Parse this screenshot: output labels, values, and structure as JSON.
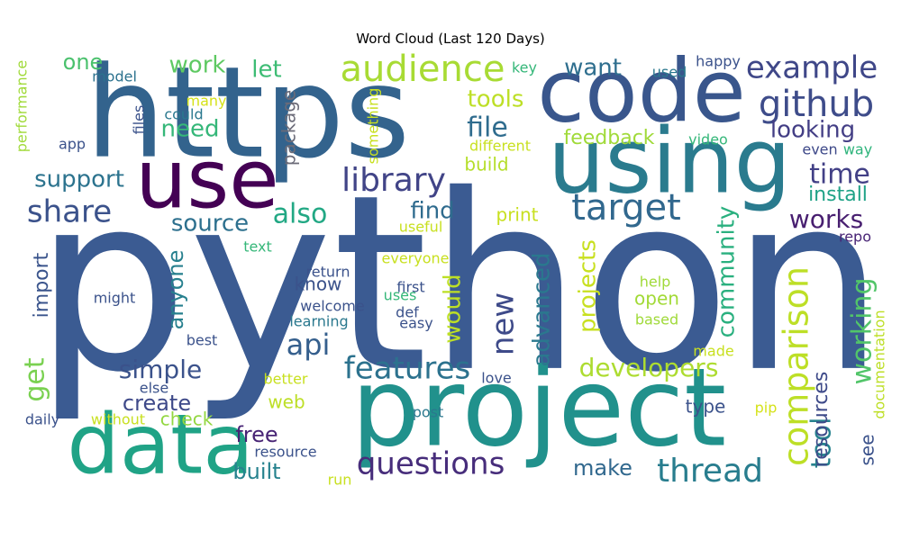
{
  "chart_data": {
    "type": "word-cloud",
    "title": "Word Cloud (Last 120 Days)",
    "words": [
      {
        "text": "python",
        "weight": 100,
        "color": "#3b5b92"
      },
      {
        "text": "https",
        "weight": 58,
        "color": "#33638d"
      },
      {
        "text": "project",
        "weight": 46,
        "color": "#21918c"
      },
      {
        "text": "using",
        "weight": 41,
        "color": "#2a7b8e"
      },
      {
        "text": "code",
        "weight": 39,
        "color": "#39568c"
      },
      {
        "text": "data",
        "weight": 38,
        "color": "#20a386"
      },
      {
        "text": "use",
        "weight": 37,
        "color": "#440154"
      },
      {
        "text": "github",
        "weight": 18,
        "color": "#3e4c8a"
      },
      {
        "text": "audience",
        "weight": 17,
        "color": "#a8db34"
      },
      {
        "text": "target",
        "weight": 16,
        "color": "#31688e"
      },
      {
        "text": "comparison",
        "weight": 16,
        "color": "#bddf26"
      },
      {
        "text": "example",
        "weight": 15,
        "color": "#3f4788"
      },
      {
        "text": "thread",
        "weight": 15,
        "color": "#287d8e"
      },
      {
        "text": "library",
        "weight": 14,
        "color": "#414487"
      },
      {
        "text": "share",
        "weight": 14,
        "color": "#3b528b"
      },
      {
        "text": "features",
        "weight": 14,
        "color": "#2c728e"
      },
      {
        "text": "questions",
        "weight": 14,
        "color": "#472d7b"
      },
      {
        "text": "new",
        "weight": 14,
        "color": "#3e4a89"
      },
      {
        "text": "api",
        "weight": 13,
        "color": "#355f8d"
      },
      {
        "text": "file",
        "weight": 13,
        "color": "#2f6c8e"
      },
      {
        "text": "also",
        "weight": 12,
        "color": "#22a884"
      },
      {
        "text": "time",
        "weight": 12,
        "color": "#424086"
      },
      {
        "text": "tool",
        "weight": 12,
        "color": "#26828e"
      },
      {
        "text": "working",
        "weight": 12,
        "color": "#52c569"
      },
      {
        "text": "get",
        "weight": 12,
        "color": "#7ad151"
      },
      {
        "text": "developers",
        "weight": 12,
        "color": "#addc30"
      },
      {
        "text": "simple",
        "weight": 12,
        "color": "#3b528b"
      },
      {
        "text": "works",
        "weight": 11,
        "color": "#481f70"
      },
      {
        "text": "community",
        "weight": 11,
        "color": "#2ab07f"
      },
      {
        "text": "want",
        "weight": 11,
        "color": "#2e6e8e"
      },
      {
        "text": "support",
        "weight": 11,
        "color": "#2c738e"
      },
      {
        "text": "source",
        "weight": 11,
        "color": "#2d708e"
      },
      {
        "text": "need",
        "weight": 11,
        "color": "#35b779"
      },
      {
        "text": "looking",
        "weight": 11,
        "color": "#433e85"
      },
      {
        "text": "tools",
        "weight": 11,
        "color": "#bddf26"
      },
      {
        "text": "advanced",
        "weight": 11,
        "color": "#2a788e"
      },
      {
        "text": "projects",
        "weight": 11,
        "color": "#c8e020"
      },
      {
        "text": "find",
        "weight": 11,
        "color": "#2f6b8e"
      },
      {
        "text": "work",
        "weight": 11,
        "color": "#5ec962"
      },
      {
        "text": "would",
        "weight": 11,
        "color": "#bddf26"
      },
      {
        "text": "let",
        "weight": 11,
        "color": "#3dbc74"
      },
      {
        "text": "one",
        "weight": 10,
        "color": "#4ac16d"
      },
      {
        "text": "make",
        "weight": 10,
        "color": "#31688e"
      },
      {
        "text": "create",
        "weight": 10,
        "color": "#3e4989"
      },
      {
        "text": "free",
        "weight": 10,
        "color": "#482475"
      },
      {
        "text": "built",
        "weight": 10,
        "color": "#26828e"
      },
      {
        "text": "anyone",
        "weight": 10,
        "color": "#27808e"
      },
      {
        "text": "feedback",
        "weight": 10,
        "color": "#a0da39"
      },
      {
        "text": "import",
        "weight": 10,
        "color": "#3a548c"
      },
      {
        "text": "resources",
        "weight": 10,
        "color": "#3e4a89"
      },
      {
        "text": "install",
        "weight": 10,
        "color": "#1fa287"
      },
      {
        "text": "build",
        "weight": 9,
        "color": "#b5de2b"
      },
      {
        "text": "open",
        "weight": 9,
        "color": "#a2da37"
      },
      {
        "text": "know",
        "weight": 9,
        "color": "#3b528b"
      },
      {
        "text": "check",
        "weight": 9,
        "color": "#93d741"
      },
      {
        "text": "package",
        "weight": 9,
        "color": "#6b6b78"
      },
      {
        "text": "print",
        "weight": 8,
        "color": "#c8e020"
      },
      {
        "text": "web",
        "weight": 8,
        "color": "#bddf26"
      },
      {
        "text": "see",
        "weight": 8,
        "color": "#3b528b"
      },
      {
        "text": "type",
        "weight": 8,
        "color": "#3b528b"
      },
      {
        "text": "model",
        "weight": 6,
        "color": "#2c728e"
      },
      {
        "text": "key",
        "weight": 6,
        "color": "#35b779"
      },
      {
        "text": "used",
        "weight": 6,
        "color": "#2a788e"
      },
      {
        "text": "happy",
        "weight": 6,
        "color": "#3b528b"
      },
      {
        "text": "could",
        "weight": 6,
        "color": "#2a788e"
      },
      {
        "text": "many",
        "weight": 6,
        "color": "#d5e21a"
      },
      {
        "text": "files",
        "weight": 6,
        "color": "#3b528b"
      },
      {
        "text": "app",
        "weight": 6,
        "color": "#3b528b"
      },
      {
        "text": "performance",
        "weight": 6,
        "color": "#a0da39"
      },
      {
        "text": "something",
        "weight": 6,
        "color": "#c8e020"
      },
      {
        "text": "different",
        "weight": 6,
        "color": "#c8e020"
      },
      {
        "text": "video",
        "weight": 6,
        "color": "#35b779"
      },
      {
        "text": "even",
        "weight": 6,
        "color": "#3e4989"
      },
      {
        "text": "way",
        "weight": 6,
        "color": "#2fb47c"
      },
      {
        "text": "useful",
        "weight": 6,
        "color": "#c8e020"
      },
      {
        "text": "text",
        "weight": 6,
        "color": "#35b779"
      },
      {
        "text": "repo",
        "weight": 6,
        "color": "#482475"
      },
      {
        "text": "everyone",
        "weight": 6,
        "color": "#c8e020"
      },
      {
        "text": "return",
        "weight": 6,
        "color": "#3b528b"
      },
      {
        "text": "first",
        "weight": 6,
        "color": "#3b528b"
      },
      {
        "text": "might",
        "weight": 6,
        "color": "#3b528b"
      },
      {
        "text": "uses",
        "weight": 6,
        "color": "#35b779"
      },
      {
        "text": "welcome",
        "weight": 6,
        "color": "#3b528b"
      },
      {
        "text": "def",
        "weight": 6,
        "color": "#3b528b"
      },
      {
        "text": "learning",
        "weight": 6,
        "color": "#2a788e"
      },
      {
        "text": "easy",
        "weight": 6,
        "color": "#3b528b"
      },
      {
        "text": "help",
        "weight": 6,
        "color": "#a0da39"
      },
      {
        "text": "based",
        "weight": 6,
        "color": "#a0da39"
      },
      {
        "text": "documentation",
        "weight": 6,
        "color": "#bddf26"
      },
      {
        "text": "best",
        "weight": 6,
        "color": "#3b528b"
      },
      {
        "text": "made",
        "weight": 6,
        "color": "#c8e020"
      },
      {
        "text": "better",
        "weight": 6,
        "color": "#c8e020"
      },
      {
        "text": "else",
        "weight": 6,
        "color": "#3b528b"
      },
      {
        "text": "love",
        "weight": 6,
        "color": "#3b528b"
      },
      {
        "text": "daily",
        "weight": 6,
        "color": "#3b528b"
      },
      {
        "text": "without",
        "weight": 6,
        "color": "#c8e020"
      },
      {
        "text": "post",
        "weight": 6,
        "color": "#2a788e"
      },
      {
        "text": "pip",
        "weight": 6,
        "color": "#d5e21a"
      },
      {
        "text": "resource",
        "weight": 6,
        "color": "#3b528b"
      },
      {
        "text": "run",
        "weight": 6,
        "color": "#c8e020"
      }
    ]
  }
}
